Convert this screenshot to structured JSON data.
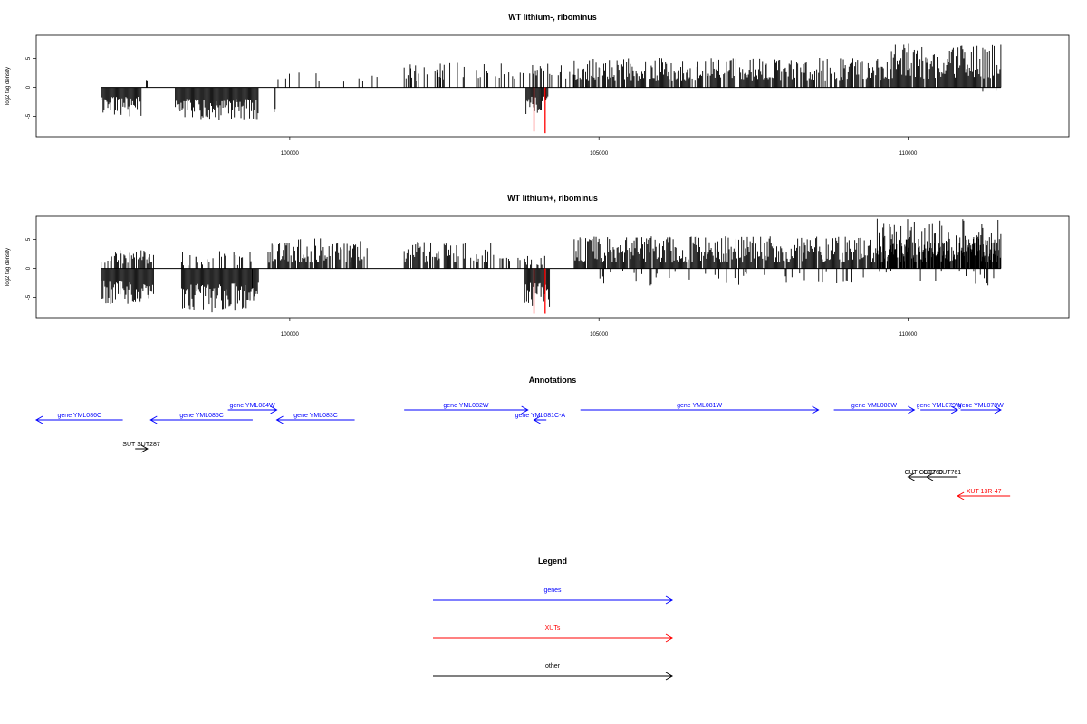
{
  "chart_data": [
    {
      "type": "bar",
      "title": "WT lithium-, ribominus",
      "ylabel": "log2 tag density",
      "xlabel": "",
      "xlim": [
        95900,
        112600
      ],
      "ylim": [
        -8.5,
        9
      ],
      "xticks": [
        100000,
        105000,
        110000
      ],
      "xtick_labels": [
        "100000",
        "105000",
        "110000"
      ],
      "yticks": [
        -5,
        0,
        5
      ],
      "ytick_labels": [
        "-5",
        "0",
        "5"
      ],
      "highlight_color": "#ff0000",
      "highlights": [
        {
          "x": 103950,
          "y": -7.6
        },
        {
          "x": 104130,
          "y": -7.9
        }
      ],
      "segments": [
        {
          "start": 96950,
          "end": 97600,
          "sign": -1,
          "min": 1.6,
          "max": 5.0,
          "density": 1.0,
          "seed": 11
        },
        {
          "start": 97680,
          "end": 97700,
          "sign": 1,
          "min": 1.2,
          "max": 1.5,
          "density": 1.0,
          "seed": 12
        },
        {
          "start": 98150,
          "end": 99500,
          "sign": -1,
          "min": 2.0,
          "max": 5.8,
          "density": 1.0,
          "seed": 13
        },
        {
          "start": 99750,
          "end": 99780,
          "sign": -1,
          "min": 3.5,
          "max": 5.2,
          "density": 1.0,
          "seed": 14
        },
        {
          "start": 99780,
          "end": 102500,
          "sign": 1,
          "min": 1.0,
          "max": 4.0,
          "density": 0.12,
          "seed": 15
        },
        {
          "start": 101850,
          "end": 104600,
          "sign": 1,
          "min": 1.5,
          "max": 4.4,
          "density": 0.28,
          "seed": 16
        },
        {
          "start": 103820,
          "end": 104180,
          "sign": -1,
          "min": 1.5,
          "max": 5.5,
          "density": 0.9,
          "seed": 17
        },
        {
          "start": 104600,
          "end": 109700,
          "sign": 1,
          "min": 1.2,
          "max": 5.1,
          "density": 0.8,
          "seed": 18
        },
        {
          "start": 109700,
          "end": 111500,
          "sign": 1,
          "min": 1.5,
          "max": 7.6,
          "density": 0.9,
          "seed": 19
        },
        {
          "start": 110500,
          "end": 111500,
          "sign": -1,
          "min": 0.5,
          "max": 1.8,
          "density": 0.06,
          "seed": 20
        }
      ]
    },
    {
      "type": "bar",
      "title": "WT lithium+, ribominus",
      "ylabel": "log2 tag density",
      "xlabel": "",
      "xlim": [
        95900,
        112600
      ],
      "ylim": [
        -8.5,
        9
      ],
      "xticks": [
        100000,
        105000,
        110000
      ],
      "xtick_labels": [
        "100000",
        "105000",
        "110000"
      ],
      "yticks": [
        -5,
        0,
        5
      ],
      "ytick_labels": [
        "-5",
        "0",
        "5"
      ],
      "highlight_color": "#ff0000",
      "highlights": [
        {
          "x": 103950,
          "y": -7.8
        },
        {
          "x": 104130,
          "y": -7.8
        }
      ],
      "segments": [
        {
          "start": 96950,
          "end": 97800,
          "sign": -1,
          "min": 2.0,
          "max": 6.2,
          "density": 1.0,
          "seed": 31
        },
        {
          "start": 96950,
          "end": 97800,
          "sign": 1,
          "min": 0.8,
          "max": 3.2,
          "density": 0.6,
          "seed": 32
        },
        {
          "start": 98250,
          "end": 99400,
          "sign": -1,
          "min": 2.5,
          "max": 7.6,
          "density": 1.0,
          "seed": 33
        },
        {
          "start": 98250,
          "end": 99400,
          "sign": 1,
          "min": 0.5,
          "max": 3.0,
          "density": 0.3,
          "seed": 34
        },
        {
          "start": 99400,
          "end": 99500,
          "sign": -1,
          "min": 2.0,
          "max": 5.8,
          "density": 1.0,
          "seed": 35
        },
        {
          "start": 99650,
          "end": 101250,
          "sign": 1,
          "min": 1.0,
          "max": 5.2,
          "density": 0.75,
          "seed": 36
        },
        {
          "start": 101850,
          "end": 103300,
          "sign": 1,
          "min": 1.0,
          "max": 4.6,
          "density": 0.6,
          "seed": 37
        },
        {
          "start": 103400,
          "end": 104300,
          "sign": 1,
          "min": 0.5,
          "max": 2.4,
          "density": 0.3,
          "seed": 38
        },
        {
          "start": 103800,
          "end": 104200,
          "sign": -1,
          "min": 2.5,
          "max": 7.0,
          "density": 1.0,
          "seed": 39
        },
        {
          "start": 104600,
          "end": 111500,
          "sign": 1,
          "min": 1.0,
          "max": 5.6,
          "density": 0.95,
          "seed": 40
        },
        {
          "start": 109500,
          "end": 111500,
          "sign": 1,
          "min": 2.0,
          "max": 8.6,
          "density": 0.7,
          "seed": 41
        },
        {
          "start": 105000,
          "end": 111500,
          "sign": -1,
          "min": 0.5,
          "max": 3.0,
          "density": 0.14,
          "seed": 42
        }
      ]
    }
  ],
  "annotations": {
    "title": "Annotations",
    "items": [
      {
        "label": "gene YML086C",
        "start": 95900,
        "end": 97300,
        "strand": "-",
        "row": 1,
        "color": "#0000ff"
      },
      {
        "label": "gene YML085C",
        "start": 97750,
        "end": 99400,
        "strand": "-",
        "row": 1,
        "color": "#0000ff"
      },
      {
        "label": "gene YML084W",
        "start": 99000,
        "end": 99790,
        "strand": "+",
        "row": 0,
        "color": "#0000ff"
      },
      {
        "label": "gene YML083C",
        "start": 99790,
        "end": 101050,
        "strand": "-",
        "row": 1,
        "color": "#0000ff"
      },
      {
        "label": "gene YML082W",
        "start": 101850,
        "end": 103850,
        "strand": "+",
        "row": 0,
        "color": "#0000ff"
      },
      {
        "label": "gene YML081C-A",
        "start": 103950,
        "end": 104150,
        "strand": "-",
        "row": 1,
        "color": "#0000ff"
      },
      {
        "label": "gene YML081W",
        "start": 104700,
        "end": 108550,
        "strand": "+",
        "row": 0,
        "color": "#0000ff"
      },
      {
        "label": "gene YML080W",
        "start": 108800,
        "end": 110100,
        "strand": "+",
        "row": 0,
        "color": "#0000ff"
      },
      {
        "label": "gene YML079W",
        "start": 110200,
        "end": 110800,
        "strand": "+",
        "row": 0,
        "color": "#0000ff"
      },
      {
        "label": "gene YML078W",
        "start": 110850,
        "end": 111500,
        "strand": "+",
        "row": 0,
        "color": "#0000ff"
      },
      {
        "label": "SUT SUT287",
        "start": 97500,
        "end": 97700,
        "strand": "+",
        "row": 2,
        "color": "#000000"
      },
      {
        "label": "CUT CUT760",
        "start": 110000,
        "end": 110500,
        "strand": "-",
        "row": 3,
        "color": "#000000"
      },
      {
        "label": "CUT CUT761",
        "start": 110300,
        "end": 110800,
        "strand": "-",
        "row": 3,
        "color": "#000000"
      },
      {
        "label": "XUT 13R-47",
        "start": 110800,
        "end": 111650,
        "strand": "-",
        "row": 4,
        "color": "#ff0000"
      }
    ]
  },
  "legend": {
    "title": "Legend",
    "entries": [
      {
        "label": "genes",
        "color": "#0000ff"
      },
      {
        "label": "XUTs",
        "color": "#ff0000"
      },
      {
        "label": "other",
        "color": "#000000"
      }
    ]
  }
}
